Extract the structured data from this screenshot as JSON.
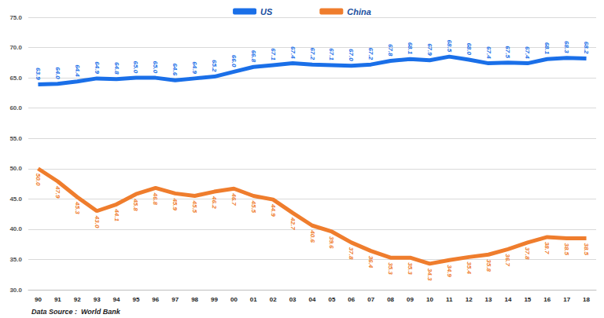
{
  "chart_data": {
    "type": "line",
    "categories": [
      "90",
      "91",
      "92",
      "93",
      "94",
      "95",
      "96",
      "97",
      "98",
      "99",
      "00",
      "01",
      "02",
      "03",
      "04",
      "05",
      "06",
      "07",
      "08",
      "09",
      "10",
      "11",
      "12",
      "13",
      "14",
      "15",
      "16",
      "17",
      "18"
    ],
    "series": [
      {
        "name": "US",
        "color": "#1a6fe8",
        "values": [
          63.9,
          64.0,
          64.4,
          64.9,
          64.8,
          65.0,
          65.0,
          64.6,
          64.9,
          65.2,
          66.0,
          66.8,
          67.1,
          67.4,
          67.2,
          67.1,
          67.0,
          67.2,
          67.8,
          68.1,
          67.9,
          68.5,
          68.0,
          67.4,
          67.5,
          67.4,
          68.1,
          68.3,
          68.2
        ],
        "value_labels": [
          "63.9",
          "64.0",
          "64.4",
          "64.9",
          "64.8",
          "65.0",
          "65.0",
          "64.6",
          "64.9",
          "65.2",
          "66.0",
          "66.8",
          "67.1",
          "67.4",
          "67.2",
          "67.1",
          "67.0",
          "67.2",
          "67.8",
          "68.1",
          "67.9",
          "68.5",
          "68.0",
          "67.4",
          "67.5",
          "67.4",
          "68.1",
          "68.3",
          "68.2"
        ]
      },
      {
        "name": "China",
        "color": "#ef7d2d",
        "values": [
          50.0,
          47.9,
          45.3,
          43.0,
          44.1,
          45.8,
          46.8,
          45.9,
          45.5,
          46.2,
          46.7,
          45.5,
          44.9,
          42.7,
          40.6,
          39.6,
          37.8,
          36.4,
          35.3,
          35.3,
          34.3,
          34.9,
          35.4,
          35.8,
          36.7,
          37.8,
          38.7,
          38.5,
          38.5
        ],
        "value_labels": [
          "50.0",
          "47.9",
          "45.3",
          "43.0",
          "44.1",
          "45.8",
          "46.8",
          "45.9",
          "45.5",
          "46.2",
          "46.7",
          "45.5",
          "44.9",
          "42.7",
          "40.6",
          "39.6",
          "37.8",
          "36.4",
          "35.3",
          "35.3",
          "34.3",
          "34.9",
          "35.4",
          "35.8",
          "36.7",
          "37.8",
          "38.7",
          "38.5",
          "38.5"
        ]
      }
    ],
    "ylim": [
      30,
      75
    ],
    "yticks": [
      {
        "value": 30,
        "label": "30.0"
      },
      {
        "value": 35,
        "label": "35.0"
      },
      {
        "value": 40,
        "label": "40.0"
      },
      {
        "value": 45,
        "label": "45.0"
      },
      {
        "value": 50,
        "label": "50.0"
      },
      {
        "value": 55,
        "label": "55.0"
      },
      {
        "value": 60,
        "label": "60.0"
      },
      {
        "value": 65,
        "label": "65.0"
      },
      {
        "value": 70,
        "label": "70.0"
      },
      {
        "value": 75,
        "label": "75.0"
      }
    ],
    "grid": true,
    "legend": "top",
    "data_labels": true,
    "annotations": [
      "Data Source :  World Bank"
    ]
  }
}
